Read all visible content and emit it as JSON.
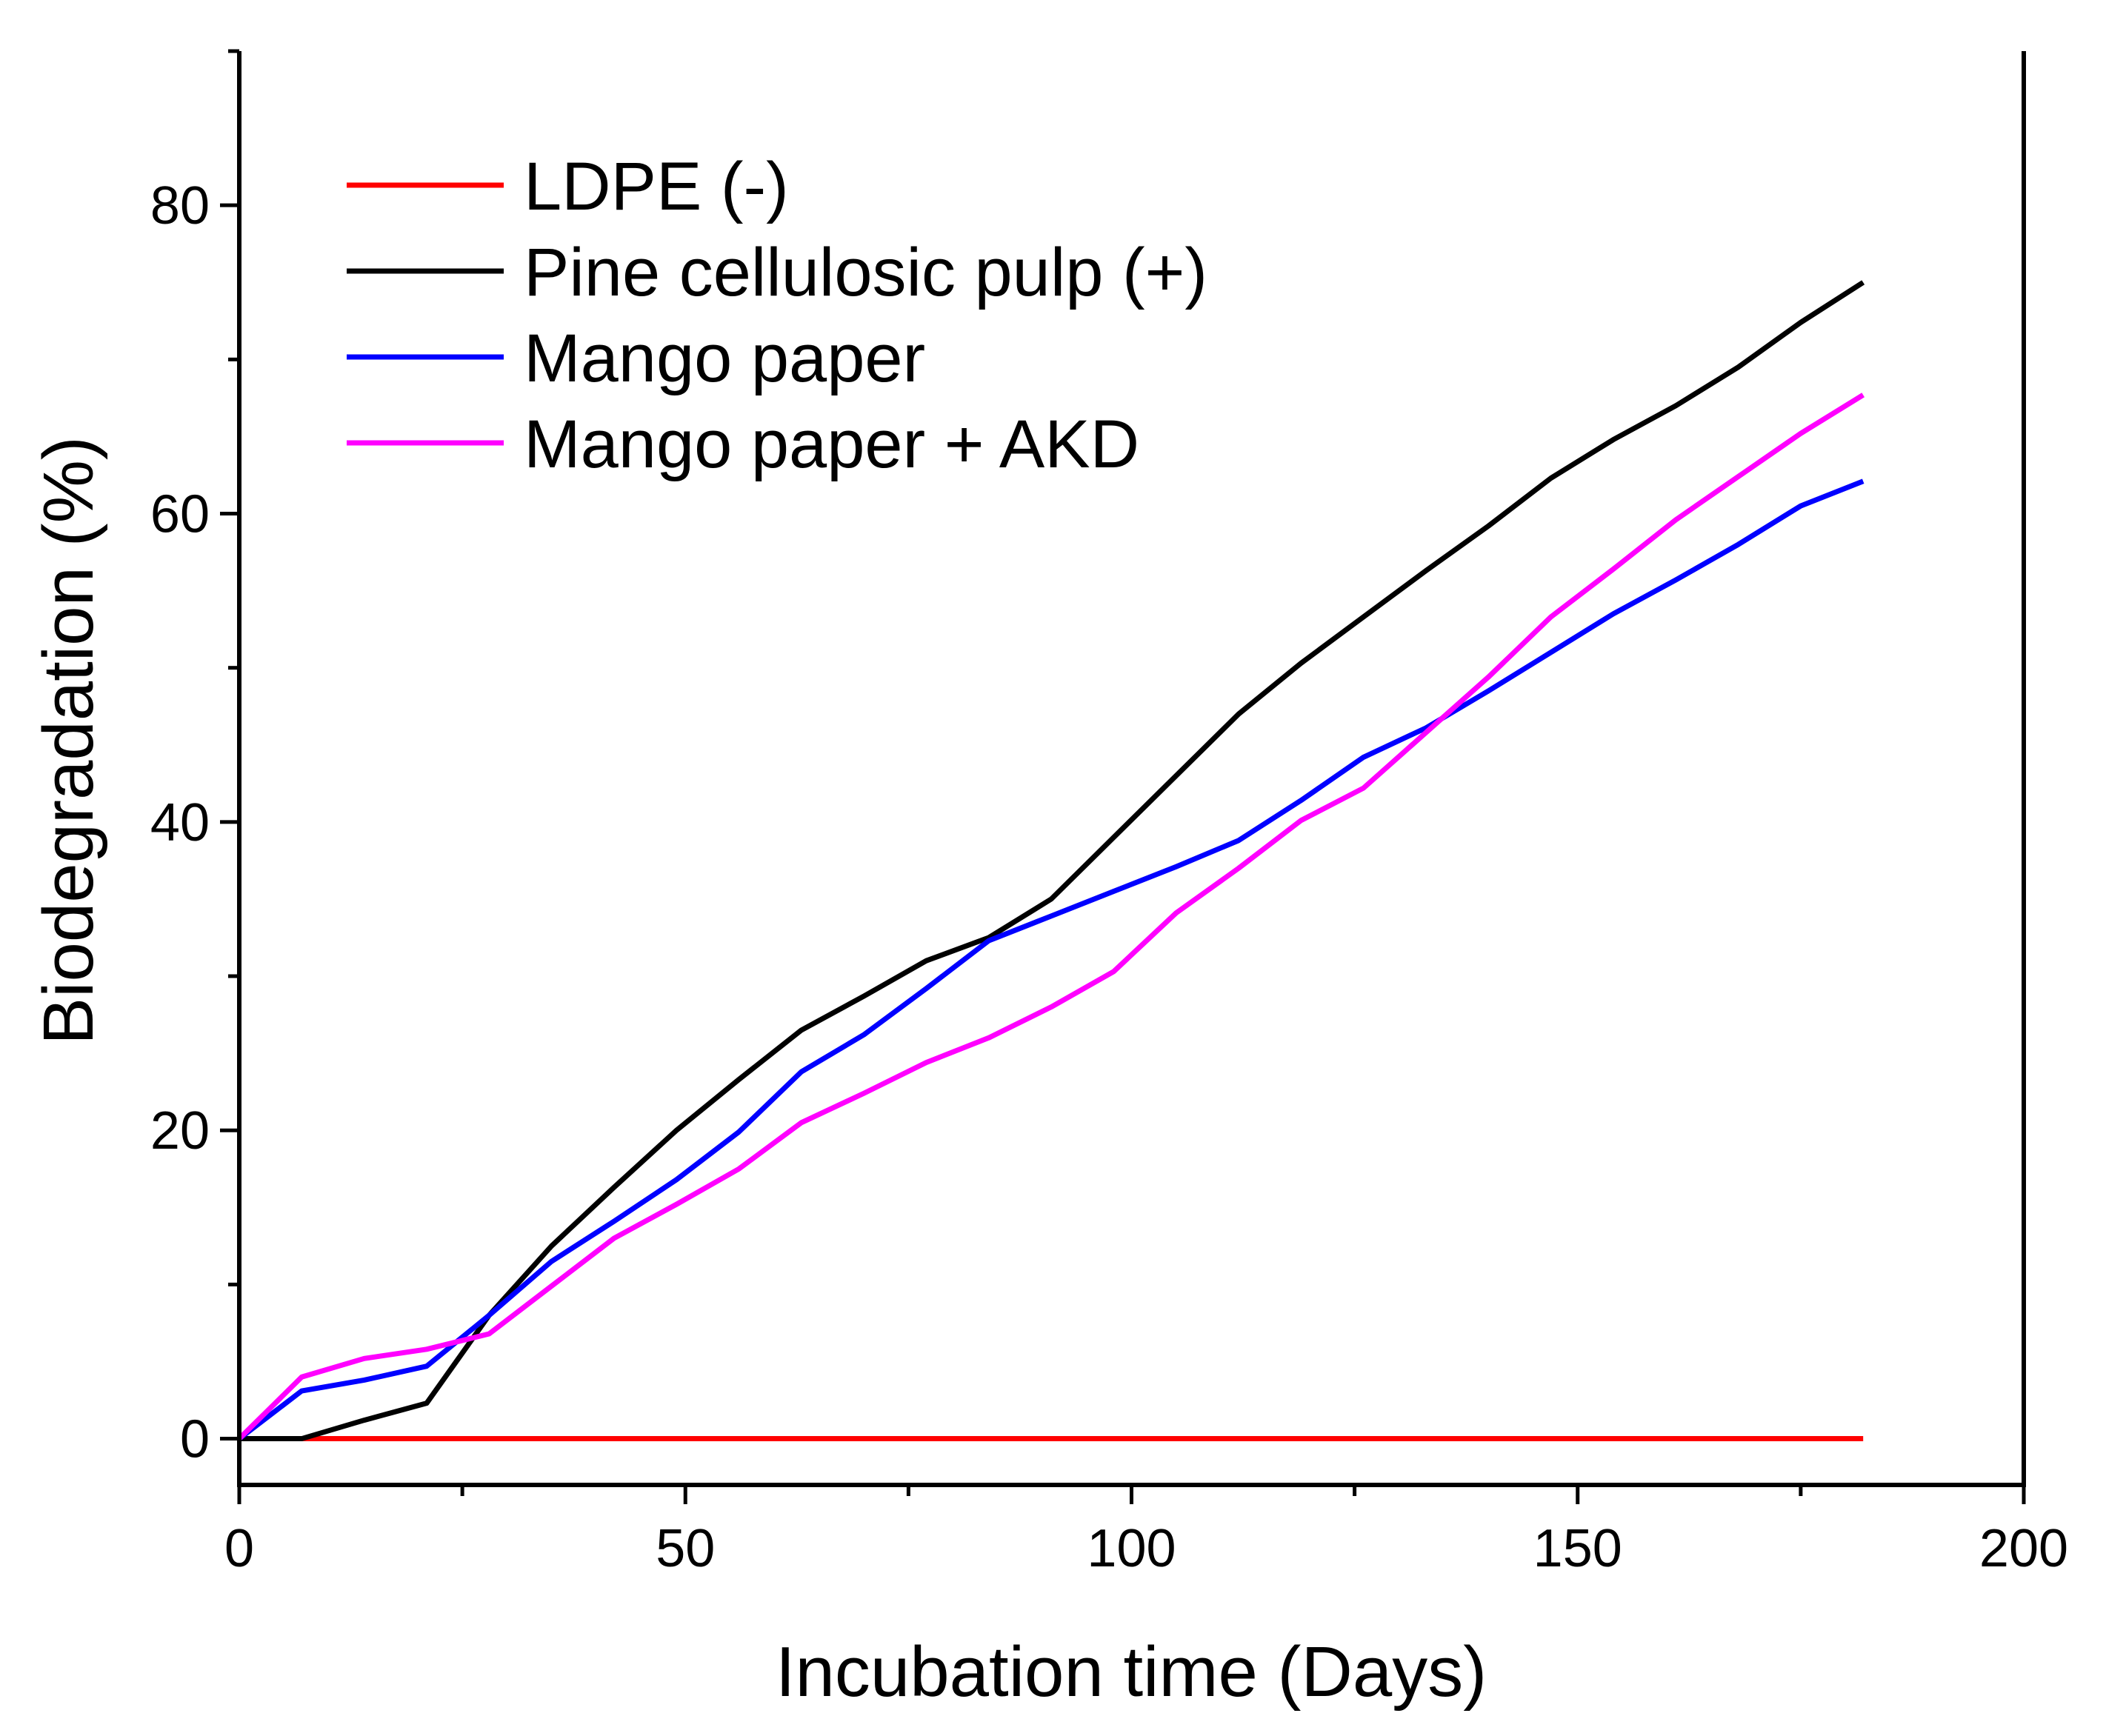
{
  "chart_data": {
    "type": "line",
    "title": "",
    "xlabel": "Incubation time (Days)",
    "ylabel": "Biodegradation (%)",
    "xlim": [
      0,
      200
    ],
    "ylim": [
      -3,
      90
    ],
    "xticks": [
      0,
      50,
      100,
      150,
      200
    ],
    "yticks": [
      0,
      20,
      40,
      60,
      80
    ],
    "grid": false,
    "legend_position": "top-left",
    "x": [
      0,
      7,
      14,
      21,
      28,
      35,
      42,
      49,
      56,
      63,
      70,
      77,
      84,
      91,
      98,
      105,
      112,
      119,
      126,
      133,
      140,
      147,
      154,
      161,
      168,
      175,
      182
    ],
    "series": [
      {
        "name": "LDPE (-)",
        "color": "#ff0000",
        "values": [
          0,
          0,
          0,
          0,
          0,
          0,
          0,
          0,
          0,
          0,
          0,
          0,
          0,
          0,
          0,
          0,
          0,
          0,
          0,
          0,
          0,
          0,
          0,
          0,
          0,
          0,
          0
        ]
      },
      {
        "name": "Pine cellulosic pulp (+)",
        "color": "#000000",
        "values": [
          0,
          0,
          1.2,
          2.3,
          8,
          12.5,
          16.3,
          20,
          23.3,
          26.5,
          28.7,
          31,
          32.5,
          35,
          39,
          43,
          47,
          50.3,
          53.3,
          56.3,
          59.2,
          62.3,
          64.8,
          67,
          69.5,
          72.4,
          75
        ]
      },
      {
        "name": "Mango paper",
        "color": "#0000ff",
        "values": [
          0,
          3.1,
          3.8,
          4.7,
          8,
          11.5,
          14.1,
          16.8,
          19.9,
          23.8,
          26.2,
          29.2,
          32.3,
          33.9,
          35.5,
          37.1,
          38.8,
          41.4,
          44.2,
          46.1,
          48.5,
          51,
          53.5,
          55.7,
          58,
          60.5,
          62.1
        ]
      },
      {
        "name": "Mango paper + AKD",
        "color": "#ff00ff",
        "values": [
          0,
          4,
          5.2,
          5.8,
          6.8,
          9.9,
          13,
          15.2,
          17.5,
          20.5,
          22.4,
          24.4,
          26,
          28,
          30.3,
          34.1,
          37,
          40.1,
          42.2,
          45.8,
          49.4,
          53.3,
          56.4,
          59.6,
          62.4,
          65.2,
          67.7
        ]
      }
    ]
  }
}
